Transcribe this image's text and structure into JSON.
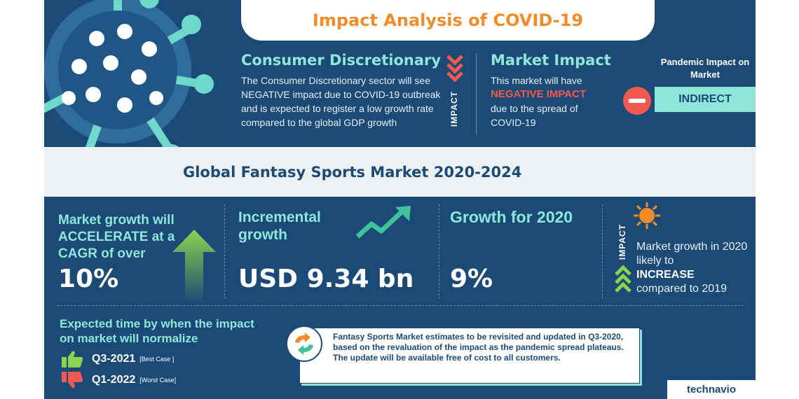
{
  "header": {
    "title": "Impact Analysis of COVID-19"
  },
  "consumer": {
    "title": "Consumer Discretionary",
    "text": "The Consumer Discretionary sector will see NEGATIVE impact due to COVID-19 outbreak and is expected to register a low growth rate compared to the global GDP growth",
    "impact_label": "IMPACT"
  },
  "market_impact": {
    "title": "Market Impact",
    "line1": "This market will have",
    "emphasis": "NEGATIVE IMPACT",
    "line2": "due to the spread of COVID-19"
  },
  "pandemic": {
    "label": "Pandemic Impact on Market",
    "value": "INDIRECT"
  },
  "band": {
    "title": "Global Fantasy Sports Market 2020-2024"
  },
  "stats": {
    "cagr_label": "Market growth will ACCELERATE at a CAGR of over",
    "cagr_value": "10%",
    "incremental_label": "Incremental growth",
    "incremental_value": "USD 9.34 bn",
    "growth_label": "Growth for 2020",
    "growth_value": "9%"
  },
  "growth_2020": {
    "impact_label": "IMPACT",
    "line1": "Market growth in 2020 likely to",
    "emphasis": "INCREASE",
    "line2": "compared to 2019"
  },
  "normalize": {
    "title": "Expected time by when the impact on market will normalize",
    "best": {
      "quarter": "Q3-2021",
      "tag": "[Best Case ]"
    },
    "worst": {
      "quarter": "Q1-2022",
      "tag": "[Worst Case]"
    }
  },
  "note": {
    "text": "Fantasy Sports Market estimates to be revisited and updated in Q3-2020, based on the revaluation of the impact as the pandemic spread plateaus. The update will be available free of cost to all customers."
  },
  "logo": {
    "text": "technavio"
  },
  "colors": {
    "navy": "#1b4a76",
    "teal": "#8fe6db",
    "orange": "#f28c28",
    "red": "#f05a4e",
    "green": "#7ccb4c"
  }
}
